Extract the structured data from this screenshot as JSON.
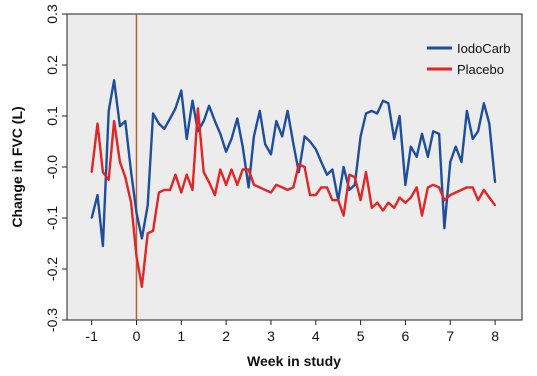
{
  "chart_data": {
    "type": "line",
    "xlabel": "Week in study",
    "ylabel": "Change in FVC (L)",
    "xlim": [
      -1.55,
      8.6
    ],
    "ylim": [
      -0.3,
      0.3
    ],
    "xticks": [
      "-1",
      "0",
      "1",
      "2",
      "3",
      "4",
      "5",
      "6",
      "7",
      "8"
    ],
    "yticks": [
      "-0.3",
      "-0.2",
      "-0.1",
      "-0.0",
      "0.1",
      "0.2",
      "0.3"
    ],
    "grid": false,
    "legend_position": "top-right",
    "reference_line_x": 0,
    "series": [
      {
        "name": "IodoCarb",
        "color": "#1f4e9a",
        "x": [
          -1.0,
          -0.87,
          -0.75,
          -0.62,
          -0.5,
          -0.37,
          -0.25,
          -0.12,
          0.0,
          0.12,
          0.25,
          0.37,
          0.5,
          0.62,
          0.75,
          0.87,
          1.0,
          1.12,
          1.25,
          1.37,
          1.5,
          1.62,
          1.75,
          1.87,
          2.0,
          2.12,
          2.25,
          2.37,
          2.5,
          2.62,
          2.75,
          2.87,
          3.0,
          3.12,
          3.25,
          3.37,
          3.5,
          3.62,
          3.75,
          3.87,
          4.0,
          4.12,
          4.25,
          4.37,
          4.5,
          4.62,
          4.75,
          4.87,
          5.0,
          5.12,
          5.25,
          5.37,
          5.5,
          5.62,
          5.75,
          5.87,
          6.0,
          6.12,
          6.25,
          6.37,
          6.5,
          6.62,
          6.75,
          6.87,
          7.0,
          7.12,
          7.25,
          7.37,
          7.5,
          7.62,
          7.75,
          7.87,
          8.0
        ],
        "values": [
          -0.1,
          -0.055,
          -0.155,
          0.11,
          0.17,
          0.08,
          0.09,
          -0.01,
          -0.09,
          -0.14,
          -0.075,
          0.105,
          0.085,
          0.075,
          0.095,
          0.115,
          0.15,
          0.055,
          0.13,
          0.07,
          0.09,
          0.12,
          0.09,
          0.065,
          0.03,
          0.055,
          0.095,
          0.04,
          -0.04,
          0.06,
          0.11,
          0.045,
          0.025,
          0.09,
          0.06,
          0.11,
          0.045,
          -0.01,
          0.06,
          0.05,
          0.035,
          0.01,
          -0.015,
          -0.005,
          -0.065,
          0.0,
          -0.045,
          -0.035,
          0.06,
          0.105,
          0.11,
          0.105,
          0.13,
          0.125,
          0.055,
          0.1,
          -0.035,
          0.04,
          0.02,
          0.065,
          0.02,
          0.07,
          0.065,
          -0.12,
          0.01,
          0.04,
          0.01,
          0.11,
          0.055,
          0.07,
          0.125,
          0.085,
          -0.03
        ]
      },
      {
        "name": "Placebo",
        "color": "#e02626",
        "x": [
          -1.0,
          -0.87,
          -0.75,
          -0.62,
          -0.5,
          -0.37,
          -0.25,
          -0.12,
          0.0,
          0.12,
          0.25,
          0.37,
          0.5,
          0.62,
          0.75,
          0.87,
          1.0,
          1.12,
          1.25,
          1.37,
          1.5,
          1.62,
          1.75,
          1.87,
          2.0,
          2.12,
          2.25,
          2.37,
          2.5,
          2.62,
          2.75,
          2.87,
          3.0,
          3.12,
          3.25,
          3.37,
          3.5,
          3.62,
          3.75,
          3.87,
          4.0,
          4.12,
          4.25,
          4.37,
          4.5,
          4.62,
          4.75,
          4.87,
          5.0,
          5.12,
          5.25,
          5.37,
          5.5,
          5.62,
          5.75,
          5.87,
          6.0,
          6.12,
          6.25,
          6.37,
          6.5,
          6.62,
          6.75,
          6.87,
          7.0,
          7.12,
          7.25,
          7.37,
          7.5,
          7.62,
          7.75,
          7.87,
          8.0
        ],
        "values": [
          -0.01,
          0.085,
          -0.01,
          -0.025,
          0.09,
          0.01,
          -0.02,
          -0.07,
          -0.175,
          -0.235,
          -0.13,
          -0.125,
          -0.05,
          -0.045,
          -0.045,
          -0.015,
          -0.05,
          -0.015,
          -0.045,
          0.115,
          -0.01,
          -0.03,
          -0.055,
          -0.005,
          -0.035,
          -0.005,
          -0.035,
          -0.005,
          -0.005,
          -0.035,
          -0.04,
          -0.045,
          -0.05,
          -0.035,
          -0.04,
          -0.045,
          -0.04,
          0.005,
          0.0,
          -0.055,
          -0.055,
          -0.04,
          -0.04,
          -0.065,
          -0.065,
          -0.095,
          -0.015,
          -0.02,
          -0.065,
          -0.01,
          -0.08,
          -0.07,
          -0.085,
          -0.07,
          -0.08,
          -0.06,
          -0.07,
          -0.06,
          -0.04,
          -0.095,
          -0.04,
          -0.035,
          -0.04,
          -0.065,
          -0.055,
          -0.05,
          -0.045,
          -0.04,
          -0.04,
          -0.065,
          -0.045,
          -0.06,
          -0.075
        ]
      }
    ]
  }
}
